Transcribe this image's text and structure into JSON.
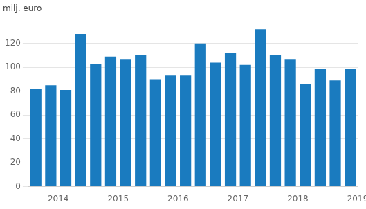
{
  "chart_data": {
    "type": "bar",
    "ylabel": "milj. euro",
    "categories": [
      null,
      "2014",
      null,
      null,
      null,
      "2015",
      null,
      null,
      null,
      "2016",
      null,
      null,
      null,
      "2017",
      null,
      null,
      null,
      "2018",
      null,
      null,
      null,
      "2019"
    ],
    "values": [
      82,
      85,
      81,
      128,
      103,
      109,
      107,
      110,
      90,
      93,
      93,
      120,
      104,
      112,
      102,
      132,
      110,
      107,
      86,
      99,
      89,
      99
    ],
    "color": "#1a7bbf",
    "ylim": [
      0,
      140
    ],
    "yticks": [
      0,
      20,
      40,
      60,
      80,
      100,
      120
    ],
    "grid": true
  }
}
